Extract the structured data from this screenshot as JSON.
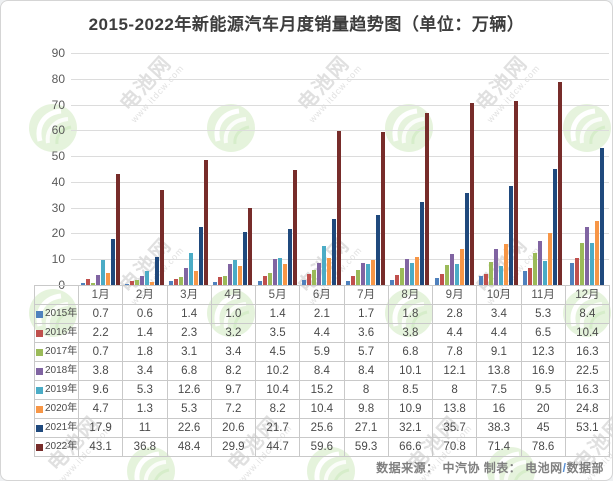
{
  "title": "2015-2022年新能源汽车月度销量趋势图（单位：万辆）",
  "footer": {
    "prefix": "数据来源： 中汽协  制表： 电池网",
    "slash": "/",
    "dept": "数据部"
  },
  "watermark": {
    "brand": "电池网",
    "url": "www.itdcw.com"
  },
  "colors": {
    "grid": "#dcdcdc",
    "axis_text": "#5a5a5a",
    "table_border": "#c9c9c9",
    "footer_text": "#7f7f7f",
    "footer_slash": "#558ed5"
  },
  "chart_data": {
    "type": "bar",
    "title": "2015-2022年新能源汽车月度销量趋势图（单位：万辆）",
    "unit": "万辆",
    "xlabel": "",
    "ylabel": "",
    "ylim": [
      0,
      90
    ],
    "yticks": [
      0,
      10,
      20,
      30,
      40,
      50,
      60,
      70,
      80,
      90
    ],
    "grid": true,
    "legend_position": "data-table-left-column",
    "categories": [
      "1月",
      "2月",
      "3月",
      "4月",
      "5月",
      "6月",
      "7月",
      "8月",
      "9月",
      "10月",
      "11月",
      "12月"
    ],
    "series": [
      {
        "name": "2015年",
        "color": "#4F81BD",
        "values": [
          0.7,
          0.6,
          1.4,
          1.0,
          1.4,
          2.1,
          1.7,
          1.8,
          2.8,
          3.4,
          5.3,
          8.4
        ],
        "labels": [
          "0.7",
          "0.6",
          "1.4",
          "1.0",
          "1.4",
          "2.1",
          "1.7",
          "1.8",
          "2.8",
          "3.4",
          "5.3",
          "8.4"
        ]
      },
      {
        "name": "2016年",
        "color": "#C0504D",
        "values": [
          2.2,
          1.4,
          2.3,
          3.2,
          3.5,
          4.4,
          3.6,
          3.8,
          4.4,
          4.4,
          6.5,
          10.4
        ],
        "labels": [
          "2.2",
          "1.4",
          "2.3",
          "3.2",
          "3.5",
          "4.4",
          "3.6",
          "3.8",
          "4.4",
          "4.4",
          "6.5",
          "10.4"
        ]
      },
      {
        "name": "2017年",
        "color": "#9BBB59",
        "values": [
          0.7,
          1.8,
          3.1,
          3.4,
          4.5,
          5.9,
          5.7,
          6.8,
          7.8,
          9.1,
          12.3,
          16.3
        ],
        "labels": [
          "0.7",
          "1.8",
          "3.1",
          "3.4",
          "4.5",
          "5.9",
          "5.7",
          "6.8",
          "7.8",
          "9.1",
          "12.3",
          "16.3"
        ]
      },
      {
        "name": "2018年",
        "color": "#8064A2",
        "values": [
          3.8,
          3.4,
          6.8,
          8.2,
          10.2,
          8.4,
          8.4,
          10.1,
          12.1,
          13.8,
          16.9,
          22.5
        ],
        "labels": [
          "3.8",
          "3.4",
          "6.8",
          "8.2",
          "10.2",
          "8.4",
          "8.4",
          "10.1",
          "12.1",
          "13.8",
          "16.9",
          "22.5"
        ]
      },
      {
        "name": "2019年",
        "color": "#4BACC6",
        "values": [
          9.6,
          5.3,
          12.6,
          9.7,
          10.4,
          15.2,
          8,
          8.5,
          8,
          7.5,
          9.5,
          16.3
        ],
        "labels": [
          "9.6",
          "5.3",
          "12.6",
          "9.7",
          "10.4",
          "15.2",
          "8",
          "8.5",
          "8",
          "7.5",
          "9.5",
          "16.3"
        ]
      },
      {
        "name": "2020年",
        "color": "#F79646",
        "values": [
          4.7,
          1.3,
          5.3,
          7.2,
          8.2,
          10.4,
          9.8,
          10.9,
          13.8,
          16,
          20,
          24.8
        ],
        "labels": [
          "4.7",
          "1.3",
          "5.3",
          "7.2",
          "8.2",
          "10.4",
          "9.8",
          "10.9",
          "13.8",
          "16",
          "20",
          "24.8"
        ]
      },
      {
        "name": "2021年",
        "color": "#1F497D",
        "values": [
          17.9,
          11,
          22.6,
          20.6,
          21.7,
          25.6,
          27.1,
          32.1,
          35.7,
          38.3,
          45,
          53.1
        ],
        "labels": [
          "17.9",
          "11",
          "22.6",
          "20.6",
          "21.7",
          "25.6",
          "27.1",
          "32.1",
          "35.7",
          "38.3",
          "45",
          "53.1"
        ]
      },
      {
        "name": "2022年",
        "color": "#772C2A",
        "values": [
          43.1,
          36.8,
          48.4,
          29.9,
          44.7,
          59.6,
          59.3,
          66.6,
          70.8,
          71.4,
          78.6,
          null
        ],
        "labels": [
          "43.1",
          "36.8",
          "48.4",
          "29.9",
          "44.7",
          "59.6",
          "59.3",
          "66.6",
          "70.8",
          "71.4",
          "78.6",
          ""
        ]
      }
    ]
  }
}
